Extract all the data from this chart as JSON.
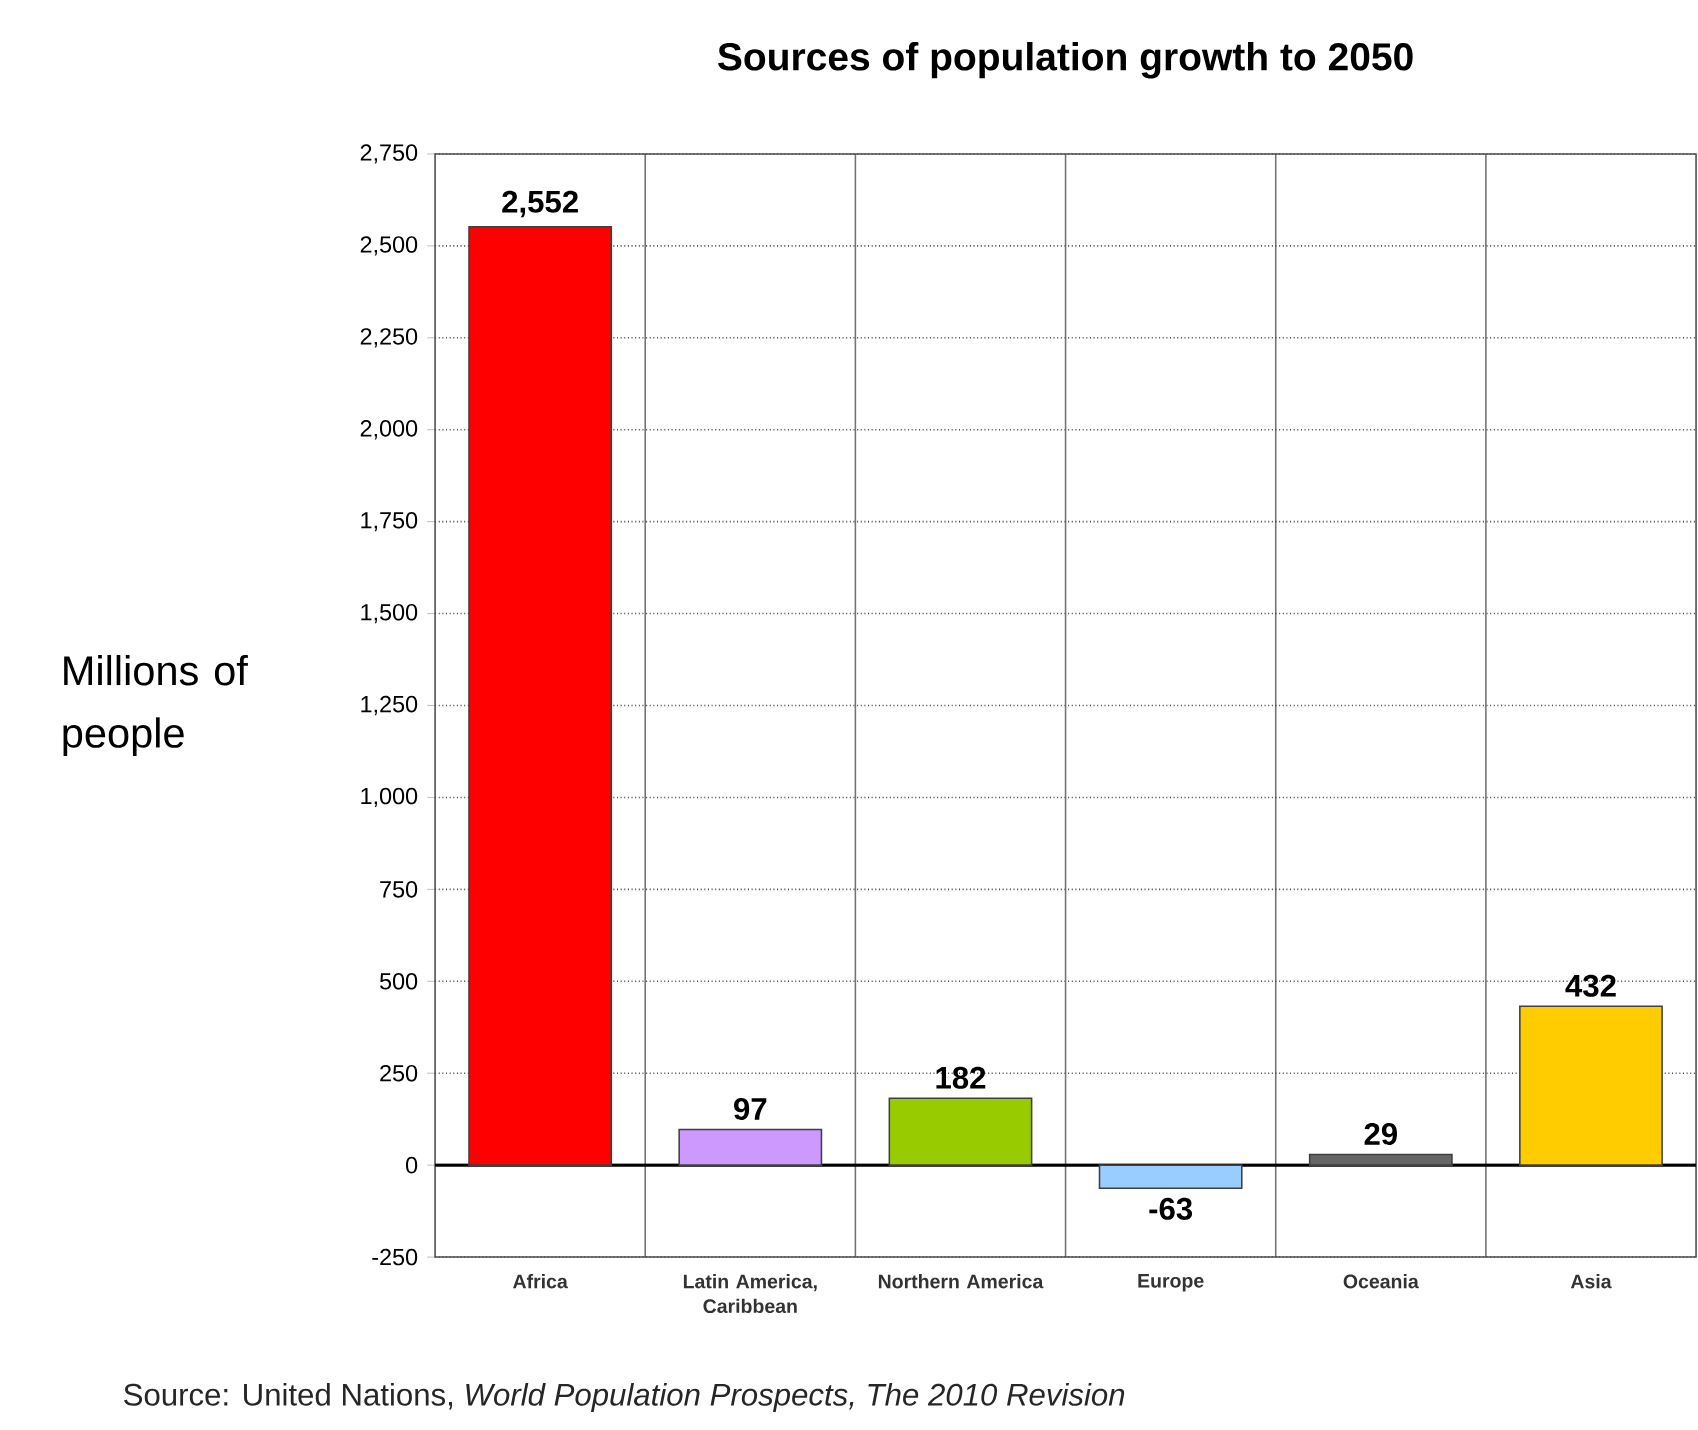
{
  "chart_data": {
    "type": "bar",
    "title": "Sources of population growth to 2050",
    "ylabel": "Millions of people",
    "categories": [
      "Africa",
      "Latin America, Caribbean",
      "Northern America",
      "Europe",
      "Oceania",
      "Asia"
    ],
    "values": [
      2552,
      97,
      182,
      -63,
      29,
      432
    ],
    "value_labels": [
      "2,552",
      "97",
      "182",
      "-63",
      "29",
      "432"
    ],
    "colors": [
      "#ff0000",
      "#cc99ff",
      "#99cc00",
      "#99ccff",
      "#666666",
      "#ffcc00"
    ],
    "ylim": [
      -250,
      2750
    ],
    "yticks": [
      -250,
      0,
      250,
      500,
      750,
      {
        "value": 1000,
        "label": "1,000"
      },
      {
        "value": 1250,
        "label": "1,250"
      },
      {
        "value": 1500,
        "label": "1,500"
      },
      {
        "value": 1750,
        "label": "1,750"
      },
      {
        "value": 2000,
        "label": "2,000"
      },
      {
        "value": 2250,
        "label": "2,250"
      },
      {
        "value": 2500,
        "label": "2,500"
      },
      {
        "value": 2750,
        "label": "2,750"
      }
    ],
    "grid": true,
    "annotations": [
      "Source: United Nations, *World Population Prospects, The 2010 Revision*"
    ]
  }
}
